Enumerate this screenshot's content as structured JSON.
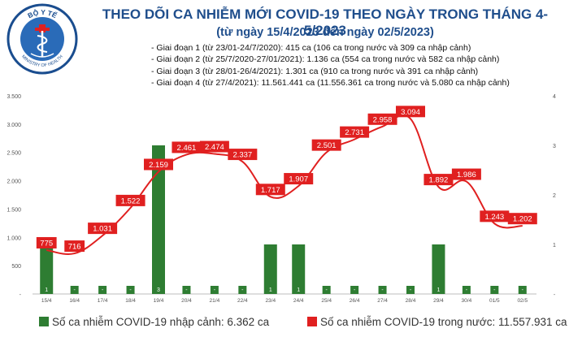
{
  "header": {
    "title": "THEO DÕI CA NHIỄM MỚI COVID-19 THEO NGÀY TRONG THÁNG 4-5/2023",
    "subtitle": "(từ ngày 15/4/2023 đến ngày 02/5/2023)",
    "notes": [
      "- Giai đoạn 1 (từ 23/01-24/7/2020): 415 ca (106 ca trong nước và 309 ca nhập cảnh)",
      "- Giai đoạn 2 (từ 25/7/2020-27/01/2021): 1.136 ca (554 ca trong nước và 582 ca nhập cảnh)",
      "- Giai đoạn 3 (từ 28/01-26/4/2021): 1.301 ca (910 ca trong nước và 391 ca nhập cảnh)",
      "- Giai đoạn 4 (từ 27/4/2021): 11.561.441 ca (11.556.361 ca trong nước và 5.080 ca nhập cảnh)"
    ]
  },
  "logo": {
    "text_top": "BỘ Y TẾ",
    "text_bottom": "MINISTRY OF HEALTH",
    "colors": {
      "ring": "#1a4d8f",
      "field": "#2a6bb8",
      "symbol": "#ffffff",
      "cross": "#e02020"
    }
  },
  "colors": {
    "title": "#1f4e8c",
    "bar": "#2e7d32",
    "line": "#e02020",
    "label_box": "#e02020",
    "gridline": "#e0e0e0"
  },
  "chart_data": {
    "type": "bar+line",
    "categories": [
      "15/4",
      "16/4",
      "17/4",
      "18/4",
      "19/4",
      "20/4",
      "21/4",
      "22/4",
      "23/4",
      "24/4",
      "25/4",
      "26/4",
      "27/4",
      "28/4",
      "29/4",
      "30/4",
      "01/5",
      "02/5"
    ],
    "series": [
      {
        "name": "Số ca nhiễm COVID-19 nhập cảnh: 6.362 ca",
        "type": "bar",
        "axis": "right",
        "values": [
          1,
          0,
          0,
          0,
          3,
          0,
          0,
          0,
          1,
          1,
          0,
          0,
          0,
          0,
          1,
          0,
          0,
          0
        ],
        "labels": [
          "1",
          "-",
          "-",
          "-",
          "3",
          "-",
          "-",
          "-",
          "1",
          "1",
          "-",
          "-",
          "-",
          "-",
          "1",
          "-",
          "-",
          "-"
        ]
      },
      {
        "name": "Số ca nhiễm COVID-19 trong nước: 11.557.931 ca",
        "type": "line",
        "axis": "left",
        "values": [
          775,
          716,
          1031,
          1522,
          2159,
          2461,
          2474,
          2337,
          1717,
          1907,
          2501,
          2731,
          2958,
          3094,
          1892,
          1986,
          1243,
          1202
        ],
        "labels": [
          "775",
          "716",
          "1.031",
          "1.522",
          "2.159",
          "2.461",
          "2.474",
          "2.337",
          "1.717",
          "1.907",
          "2.501",
          "2.731",
          "2.958",
          "3.094",
          "1.892",
          "1.986",
          "1.243",
          "1.202"
        ]
      }
    ],
    "y_left": {
      "min": 0,
      "max": 3500,
      "ticks": [
        "-",
        "500",
        "1.000",
        "1.500",
        "2.000",
        "2.500",
        "3.000",
        "3.500"
      ]
    },
    "y_right": {
      "min": 0,
      "max": 4,
      "ticks": [
        "-",
        "1",
        "2",
        "3",
        "4"
      ]
    },
    "grid": false,
    "legend": "bottom"
  }
}
